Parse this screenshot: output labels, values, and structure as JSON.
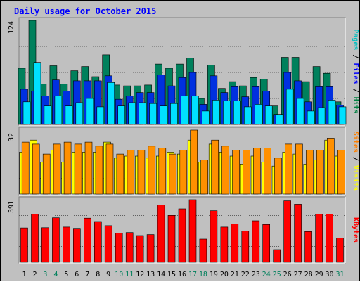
{
  "chart_data": {
    "type": "bar",
    "title": "Daily usage for October 2015",
    "categories": [
      "1",
      "2",
      "3",
      "4",
      "5",
      "6",
      "7",
      "8",
      "9",
      "10",
      "11",
      "12",
      "13",
      "14",
      "15",
      "16",
      "17",
      "18",
      "19",
      "20",
      "21",
      "22",
      "23",
      "24",
      "25",
      "26",
      "27",
      "28",
      "29",
      "30",
      "31"
    ],
    "weekend_days": [
      "3",
      "4",
      "10",
      "11",
      "17",
      "18",
      "24",
      "25",
      "31"
    ],
    "panels": [
      {
        "id": "hits-files-pages",
        "ymax_label": "124",
        "ylim": [
          0,
          124
        ],
        "side_labels": [
          {
            "text": "Pages",
            "color": "#00c0c0"
          },
          {
            "text": " / ",
            "color": "#000000"
          },
          {
            "text": "Files",
            "color": "#0000ff"
          },
          {
            "text": " / ",
            "color": "#000000"
          },
          {
            "text": "Hits",
            "color": "#008040"
          }
        ],
        "series": [
          {
            "name": "Hits",
            "color": "#00805c",
            "values": [
              67,
              124,
              48,
              70,
              48,
              64,
              69,
              57,
              83,
              47,
              46,
              46,
              47,
              72,
              67,
              72,
              79,
              31,
              71,
              43,
              51,
              46,
              56,
              54,
              22,
              80,
              80,
              51,
              69,
              61,
              27
            ]
          },
          {
            "name": "Files",
            "color": "#0030e0",
            "values": [
              42,
              40,
              34,
              53,
              40,
              52,
              52,
              52,
              58,
              30,
              34,
              38,
              38,
              59,
              46,
              56,
              62,
              24,
              58,
              38,
              45,
              33,
              45,
              40,
              12,
              62,
              52,
              27,
              45,
              45,
              23
            ]
          },
          {
            "name": "Pages",
            "color": "#00e0ff",
            "values": [
              27,
              74,
              22,
              34,
              22,
              26,
              31,
              21,
              50,
              22,
              26,
              26,
              25,
              22,
              25,
              34,
              34,
              16,
              29,
              28,
              28,
              21,
              24,
              22,
              12,
              42,
              31,
              16,
              20,
              29,
              21
            ]
          }
        ]
      },
      {
        "id": "visits-sites",
        "ymax_label": "32",
        "ylim": [
          0,
          32
        ],
        "side_labels": [
          {
            "text": "Sites",
            "color": "#ff8000"
          },
          {
            "text": " / ",
            "color": "#000000"
          },
          {
            "text": "Visits",
            "color": "#ffff00"
          }
        ],
        "series": [
          {
            "name": "Visits",
            "color": "#ffff00",
            "values": [
              21,
              27,
              16,
              22,
              16,
              21,
              21,
              21,
              26,
              18,
              19,
              19,
              18,
              19,
              21,
              20,
              27,
              16,
              25,
              21,
              19,
              15,
              19,
              16,
              14,
              21,
              20,
              15,
              17,
              27,
              19
            ]
          },
          {
            "name": "Sites",
            "color": "#ff9000",
            "values": [
              26,
              25,
              20,
              25,
              26,
              25,
              26,
              24,
              25,
              20,
              22,
              22,
              24,
              23,
              20,
              22,
              32,
              17,
              27,
              24,
              22,
              22,
              23,
              23,
              18,
              25,
              25,
              22,
              22,
              28,
              22
            ]
          }
        ]
      },
      {
        "id": "kbytes",
        "ymax_label": "391",
        "ylim": [
          0,
          391
        ],
        "side_labels": [
          {
            "text": "KBytes",
            "color": "#ff0000"
          }
        ],
        "series": [
          {
            "name": "KBytes",
            "color": "#ff0000",
            "values": [
              215,
              301,
              216,
              278,
              220,
              212,
              276,
              255,
              229,
              183,
              186,
              167,
              173,
              358,
              293,
              334,
              391,
              145,
              322,
              220,
              240,
              195,
              259,
              236,
              79,
              384,
              363,
              192,
              302,
              301,
              152
            ]
          }
        ]
      }
    ],
    "colors": {
      "grid": "#000000",
      "panel_bg": "#c0c0c0",
      "title": "#0000ff",
      "weekday_label": "#000000",
      "weekend_label": "#00805c"
    }
  }
}
